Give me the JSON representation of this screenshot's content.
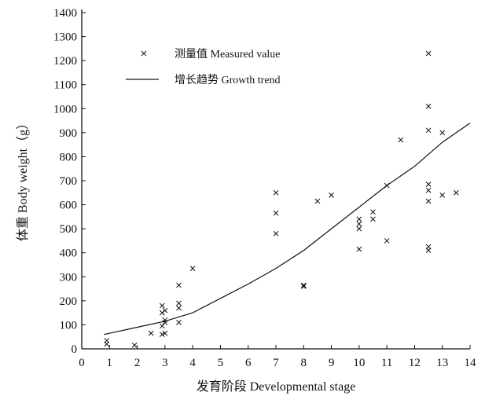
{
  "chart_data": {
    "type": "scatter",
    "title": "",
    "xlabel": "发育阶段 Developmental stage",
    "ylabel": "体重 Body weight（g）",
    "xlim": [
      0,
      14
    ],
    "ylim": [
      0,
      1400
    ],
    "xticks": [
      0,
      1,
      2,
      3,
      4,
      5,
      6,
      7,
      8,
      9,
      10,
      11,
      12,
      13,
      14
    ],
    "yticks": [
      0,
      100,
      200,
      300,
      400,
      500,
      600,
      700,
      800,
      900,
      1000,
      1100,
      1200,
      1300,
      1400
    ],
    "grid": false,
    "legend_position": "top-left",
    "series": [
      {
        "name": "测量值 Measured value",
        "marker": "x",
        "points": [
          [
            0.9,
            20
          ],
          [
            0.9,
            35
          ],
          [
            1.9,
            15
          ],
          [
            2.5,
            65
          ],
          [
            2.9,
            60
          ],
          [
            3.0,
            65
          ],
          [
            2.9,
            95
          ],
          [
            3.0,
            110
          ],
          [
            3.0,
            120
          ],
          [
            2.9,
            150
          ],
          [
            3.0,
            160
          ],
          [
            2.9,
            180
          ],
          [
            3.5,
            110
          ],
          [
            3.5,
            170
          ],
          [
            3.5,
            190
          ],
          [
            3.5,
            265
          ],
          [
            4.0,
            335
          ],
          [
            7.0,
            480
          ],
          [
            7.0,
            565
          ],
          [
            7.0,
            650
          ],
          [
            8.0,
            260
          ],
          [
            8.0,
            265
          ],
          [
            8.5,
            615
          ],
          [
            9.0,
            640
          ],
          [
            10.0,
            415
          ],
          [
            10.0,
            500
          ],
          [
            10.0,
            520
          ],
          [
            10.0,
            540
          ],
          [
            10.5,
            540
          ],
          [
            10.5,
            570
          ],
          [
            11.0,
            450
          ],
          [
            11.0,
            680
          ],
          [
            11.5,
            870
          ],
          [
            12.5,
            410
          ],
          [
            12.5,
            425
          ],
          [
            12.5,
            615
          ],
          [
            12.5,
            660
          ],
          [
            12.5,
            685
          ],
          [
            12.5,
            910
          ],
          [
            12.5,
            1010
          ],
          [
            12.5,
            1230
          ],
          [
            13.0,
            640
          ],
          [
            13.0,
            900
          ],
          [
            13.5,
            650
          ]
        ]
      },
      {
        "name": "增长趋势 Growth trend",
        "type": "line",
        "points": [
          [
            0.8,
            60
          ],
          [
            2,
            90
          ],
          [
            3,
            115
          ],
          [
            4,
            150
          ],
          [
            5,
            210
          ],
          [
            6,
            270
          ],
          [
            7,
            335
          ],
          [
            8,
            410
          ],
          [
            9,
            500
          ],
          [
            10,
            590
          ],
          [
            11,
            680
          ],
          [
            12,
            760
          ],
          [
            13,
            860
          ],
          [
            14,
            940
          ]
        ]
      }
    ]
  }
}
